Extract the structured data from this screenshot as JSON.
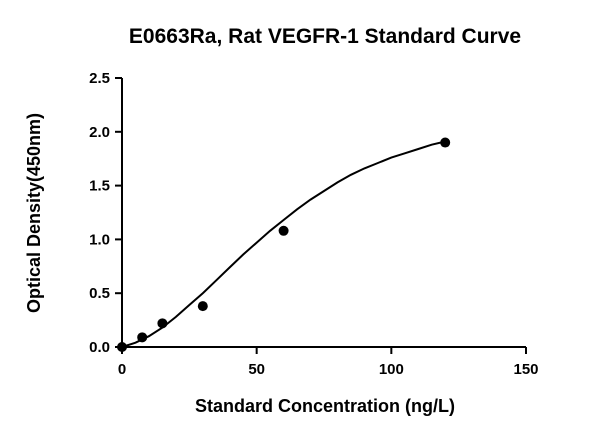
{
  "chart_data": {
    "type": "scatter",
    "title": "E0663Ra, Rat VEGFR-1 Standard Curve",
    "xlabel": "Standard Concentration (ng/L)",
    "ylabel": "Optical Density(450nm)",
    "xlim": [
      0,
      150
    ],
    "ylim": [
      0,
      2.5
    ],
    "x_ticks": [
      "0",
      "50",
      "100",
      "150"
    ],
    "y_ticks": [
      "0.0",
      "0.5",
      "1.0",
      "1.5",
      "2.0",
      "2.5"
    ],
    "grid": false,
    "points": [
      {
        "x": 0,
        "y": 0.0
      },
      {
        "x": 7.5,
        "y": 0.09
      },
      {
        "x": 15,
        "y": 0.22
      },
      {
        "x": 30,
        "y": 0.38
      },
      {
        "x": 60,
        "y": 1.08
      },
      {
        "x": 120,
        "y": 1.9
      }
    ],
    "fit_curve": [
      [
        0,
        0.0
      ],
      [
        5,
        0.04
      ],
      [
        10,
        0.1
      ],
      [
        15,
        0.18
      ],
      [
        20,
        0.28
      ],
      [
        25,
        0.39
      ],
      [
        30,
        0.5
      ],
      [
        35,
        0.62
      ],
      [
        40,
        0.74
      ],
      [
        45,
        0.86
      ],
      [
        50,
        0.97
      ],
      [
        55,
        1.08
      ],
      [
        60,
        1.18
      ],
      [
        65,
        1.28
      ],
      [
        70,
        1.37
      ],
      [
        75,
        1.45
      ],
      [
        80,
        1.53
      ],
      [
        85,
        1.6
      ],
      [
        90,
        1.66
      ],
      [
        95,
        1.71
      ],
      [
        100,
        1.76
      ],
      [
        105,
        1.8
      ],
      [
        110,
        1.84
      ],
      [
        115,
        1.88
      ],
      [
        120,
        1.91
      ]
    ],
    "colors": {
      "marks": "#000000"
    }
  }
}
